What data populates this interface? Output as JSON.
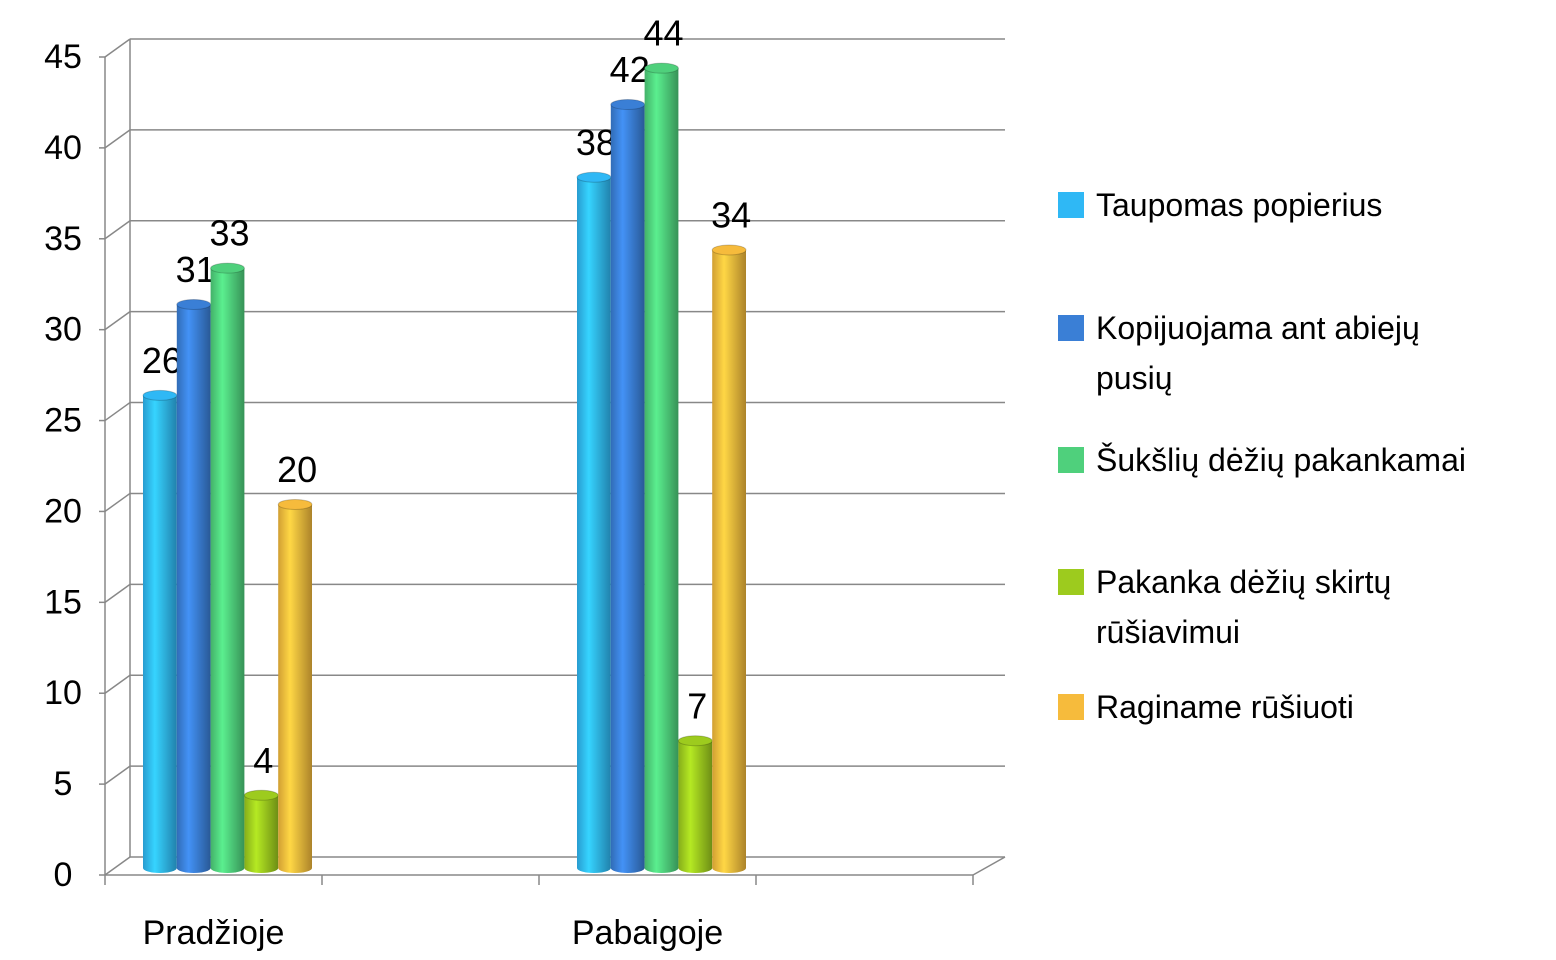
{
  "chart_data": {
    "type": "bar3d",
    "categories": [
      "Pradžioje",
      null,
      "Pabaigoje",
      null
    ],
    "series": [
      {
        "name": "Taupomas popierius",
        "color": "#2fb8f5",
        "values": [
          26,
          null,
          38,
          null
        ]
      },
      {
        "name": "Kopijuojama ant abiejų pusių",
        "color": "#3a7fd6",
        "values": [
          31,
          null,
          42,
          null
        ]
      },
      {
        "name": "Šukšlių dėžių pakankamai",
        "color": "#4fd07c",
        "values": [
          33,
          null,
          44,
          null
        ]
      },
      {
        "name": "Pakanka dėžių skirtų rūšiavimui",
        "color": "#9dcb1e",
        "values": [
          4,
          null,
          7,
          null
        ]
      },
      {
        "name": "Raginame rūšiuoti",
        "color": "#f6bb3c",
        "values": [
          20,
          null,
          34,
          null
        ]
      }
    ],
    "ylim": [
      0,
      45
    ],
    "yticks": [
      0,
      5,
      10,
      15,
      20,
      25,
      30,
      35,
      40,
      45
    ],
    "grid": true,
    "legend": "right"
  }
}
